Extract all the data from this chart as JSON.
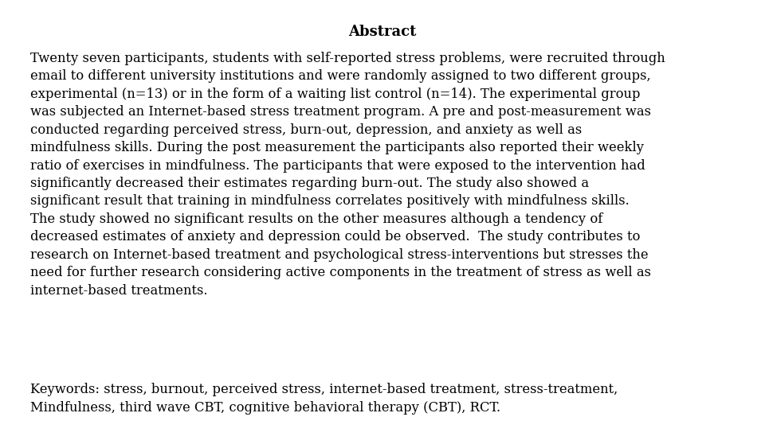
{
  "title": "Abstract",
  "body": "Twenty seven participants, students with self-reported stress problems, were recruited through\nemail to different university institutions and were randomly assigned to two different groups,\nexperimental (n=13) or in the form of a waiting list control (n=14). The experimental group\nwas subjected an Internet-based stress treatment program. A pre and post-measurement was\nconducted regarding perceived stress, burn-out, depression, and anxiety as well as\nmindfulness skills. During the post measurement the participants also reported their weekly\nratio of exercises in mindfulness. The participants that were exposed to the intervention had\nsignificantly decreased their estimates regarding burn-out. The study also showed a\nsignificant result that training in mindfulness correlates positively with mindfulness skills.\nThe study showed no significant results on the other measures although a tendency of\ndecreased estimates of anxiety and depression could be observed.  The study contributes to\nresearch on Internet-based treatment and psychological stress-interventions but stresses the\nneed for further research considering active components in the treatment of stress as well as\ninternet-based treatments.",
  "keywords": "Keywords: stress, burnout, perceived stress, internet-based treatment, stress-treatment,\nMindfulness, third wave CBT, cognitive behavioral therapy (CBT), RCT.",
  "background_color": "#ffffff",
  "text_color": "#000000",
  "title_fontsize": 13.0,
  "body_fontsize": 11.8,
  "keywords_fontsize": 11.8
}
